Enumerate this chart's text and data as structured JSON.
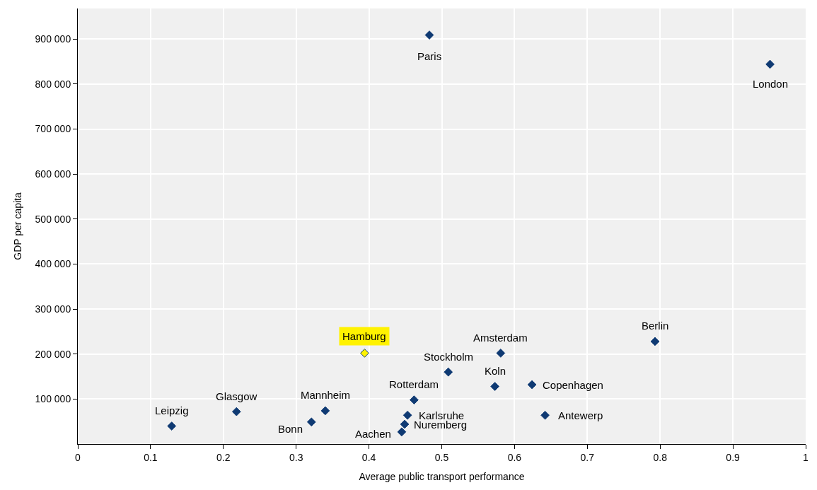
{
  "chart_data": {
    "type": "scatter",
    "xlabel": "Average public transport performance",
    "ylabel": "GDP per capita",
    "x": [
      0.483,
      0.951,
      0.793,
      0.581,
      0.394,
      0.509,
      0.573,
      0.624,
      0.462,
      0.642,
      0.453,
      0.449,
      0.445,
      0.34,
      0.321,
      0.218,
      0.129
    ],
    "series": [
      {
        "color": "#0f3a73",
        "colors": [
          "#0f3a73",
          "#0f3a73",
          "#0f3a73",
          "#0f3a73",
          "#fff200",
          "#0f3a73",
          "#0f3a73",
          "#0f3a73",
          "#0f3a73",
          "#0f3a73",
          "#0f3a73",
          "#0f3a73",
          "#0f3a73",
          "#0f3a73",
          "#0f3a73",
          "#0f3a73",
          "#0f3a73"
        ],
        "values": [
          909000,
          844000,
          228000,
          202000,
          202000,
          160000,
          128000,
          132000,
          98000,
          64000,
          64000,
          44000,
          27000,
          74000,
          49000,
          72000,
          40000
        ]
      }
    ],
    "annotations": [
      {
        "text": "Paris",
        "x": 0.483,
        "y": 909000
      },
      {
        "text": "London",
        "x": 0.951,
        "y": 844000
      },
      {
        "text": "Berlin",
        "x": 0.793,
        "y": 228000
      },
      {
        "text": "Amsterdam",
        "x": 0.581,
        "y": 202000
      },
      {
        "text": "Hamburg",
        "x": 0.394,
        "y": 202000
      },
      {
        "text": "Stockholm",
        "x": 0.509,
        "y": 160000
      },
      {
        "text": "Koln",
        "x": 0.573,
        "y": 128000
      },
      {
        "text": "Copenhagen",
        "x": 0.624,
        "y": 132000
      },
      {
        "text": "Rotterdam",
        "x": 0.462,
        "y": 98000
      },
      {
        "text": "Antewerp",
        "x": 0.642,
        "y": 64000
      },
      {
        "text": "Karlsruhe",
        "x": 0.453,
        "y": 64000
      },
      {
        "text": "Nuremberg",
        "x": 0.449,
        "y": 44000
      },
      {
        "text": "Aachen",
        "x": 0.445,
        "y": 27000
      },
      {
        "text": "Mannheim",
        "x": 0.34,
        "y": 74000
      },
      {
        "text": "Bonn",
        "x": 0.321,
        "y": 49000
      },
      {
        "text": "Glasgow",
        "x": 0.218,
        "y": 72000
      },
      {
        "text": "Leipzig",
        "x": 0.129,
        "y": 40000
      }
    ],
    "xlim": [
      0,
      1
    ],
    "xticks": [
      0,
      0.1,
      0.2,
      0.3,
      0.4,
      0.5,
      0.6,
      0.7,
      0.8,
      0.9,
      1
    ],
    "ylim": [
      0,
      968000
    ],
    "yticks": [
      {
        "value": 100000,
        "label": "100 000"
      },
      {
        "value": 200000,
        "label": "200 000"
      },
      {
        "value": 300000,
        "label": "300 000"
      },
      {
        "value": 400000,
        "label": "400 000"
      },
      {
        "value": 500000,
        "label": "500 000"
      },
      {
        "value": 600000,
        "label": "600 000"
      },
      {
        "value": 700000,
        "label": "700 000"
      },
      {
        "value": 800000,
        "label": "800 000"
      },
      {
        "value": 900000,
        "label": "900 000"
      }
    ],
    "grid": true,
    "marker": "diamond"
  }
}
